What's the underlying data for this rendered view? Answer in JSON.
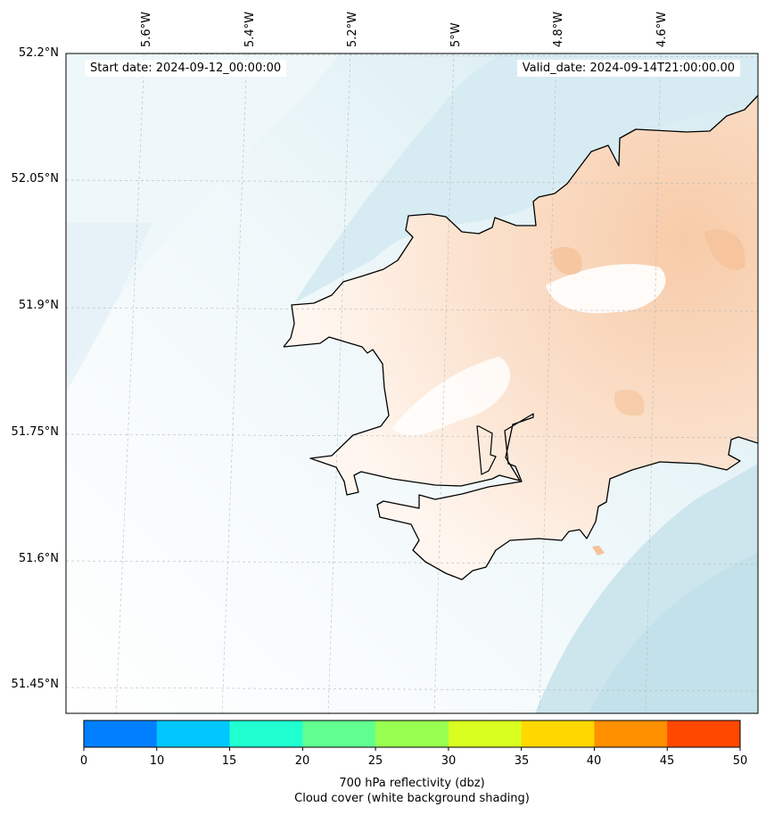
{
  "start_date": "Start date: 2024-09-12_00:00:00",
  "valid_date": "Valid_date: 2024-09-14T21:00:00.00",
  "lat_labels": [
    "52.2°N",
    "52.05°N",
    "51.9°N",
    "51.75°N",
    "51.6°N",
    "51.45°N"
  ],
  "lon_labels": [
    "5.6°W",
    "5.4°W",
    "5.2°W",
    "5°W",
    "4.8°W",
    "4.6°W"
  ],
  "colorbar": {
    "ticks": [
      "0",
      "10",
      "15",
      "20",
      "25",
      "30",
      "35",
      "40",
      "45",
      "50"
    ],
    "colors": [
      "#0080ff",
      "#00c8ff",
      "#20ffd0",
      "#60ff90",
      "#98ff50",
      "#d8ff20",
      "#ffd800",
      "#ff9000",
      "#ff4800"
    ],
    "title_line1": "700 hPa reflectivity (dbz)",
    "title_line2": "Cloud cover (white background shading)"
  },
  "colors": {
    "sea_cloud": "#cde7ef",
    "land_cloud": "#f9d8bd",
    "coastline": "#000000"
  }
}
